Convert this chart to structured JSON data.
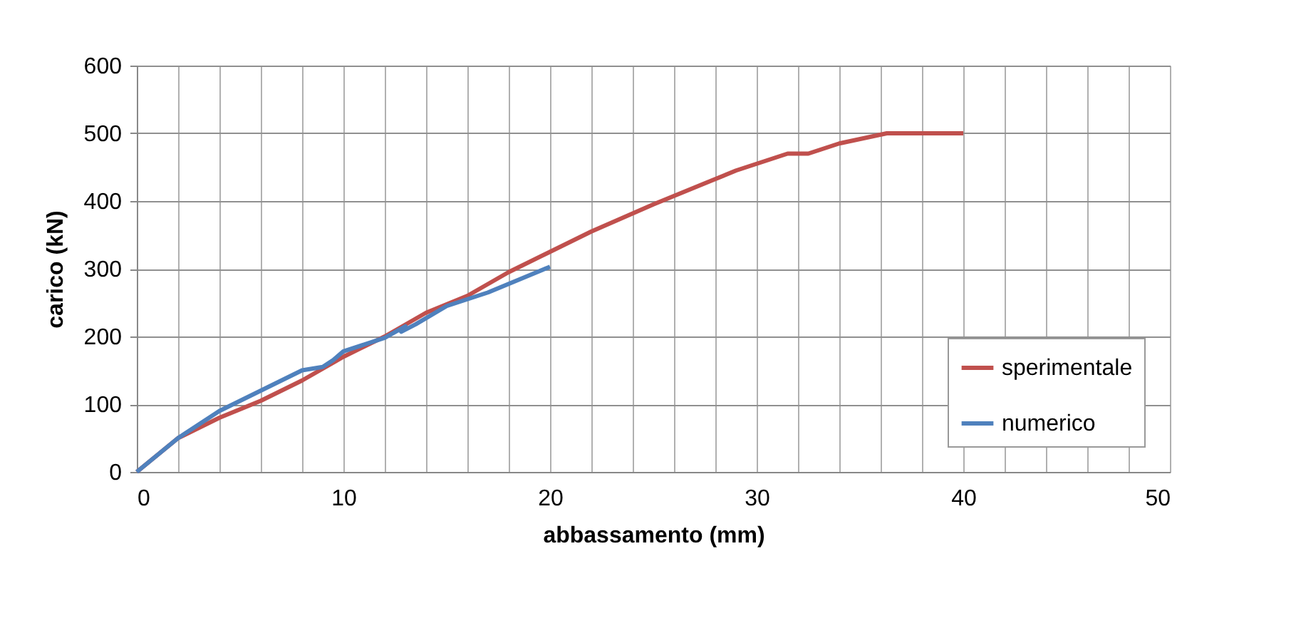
{
  "chart_data": {
    "type": "line",
    "xlabel": "abbassamento (mm)",
    "ylabel": "carico (kN)",
    "xlim": [
      0,
      50
    ],
    "ylim": [
      0,
      600
    ],
    "xticks": [
      0,
      {
        "value": 2,
        "label": null
      },
      {
        "value": 4,
        "label": null
      },
      {
        "value": 6,
        "label": null
      },
      {
        "value": 8,
        "label": null
      },
      10,
      {
        "value": 12,
        "label": null
      },
      {
        "value": 14,
        "label": null
      },
      {
        "value": 16,
        "label": null
      },
      {
        "value": 18,
        "label": null
      },
      20,
      {
        "value": 22,
        "label": null
      },
      {
        "value": 24,
        "label": null
      },
      {
        "value": 26,
        "label": null
      },
      {
        "value": 28,
        "label": null
      },
      30,
      {
        "value": 32,
        "label": null
      },
      {
        "value": 34,
        "label": null
      },
      {
        "value": 36,
        "label": null
      },
      {
        "value": 38,
        "label": null
      },
      40,
      {
        "value": 42,
        "label": null
      },
      {
        "value": 44,
        "label": null
      },
      {
        "value": 46,
        "label": null
      },
      {
        "value": 48,
        "label": null
      },
      50
    ],
    "yticks": [
      0,
      100,
      200,
      300,
      400,
      500,
      600
    ],
    "grid": true,
    "legend": "bottom right",
    "line_style": "solid",
    "series": [
      {
        "name": "sperimentale",
        "color": "#c0504d",
        "x": [
          0,
          2,
          4,
          6,
          8,
          10,
          12,
          14,
          16,
          18,
          20,
          22,
          25,
          27,
          29,
          31.5,
          32.5,
          34,
          36.3,
          40
        ],
        "values": [
          0,
          50,
          80,
          105,
          135,
          170,
          200,
          235,
          260,
          295,
          325,
          355,
          395,
          420,
          445,
          470,
          470,
          485,
          500,
          500
        ]
      },
      {
        "name": "numerico",
        "color": "#4f81bd",
        "x": [
          0,
          2,
          4,
          6,
          8,
          9,
          9.5,
          10,
          12,
          13,
          12.8,
          13.5,
          15,
          17,
          20
        ],
        "values": [
          0,
          50,
          90,
          120,
          150,
          155,
          165,
          178,
          198,
          215,
          207,
          218,
          245,
          265,
          303
        ]
      }
    ]
  }
}
